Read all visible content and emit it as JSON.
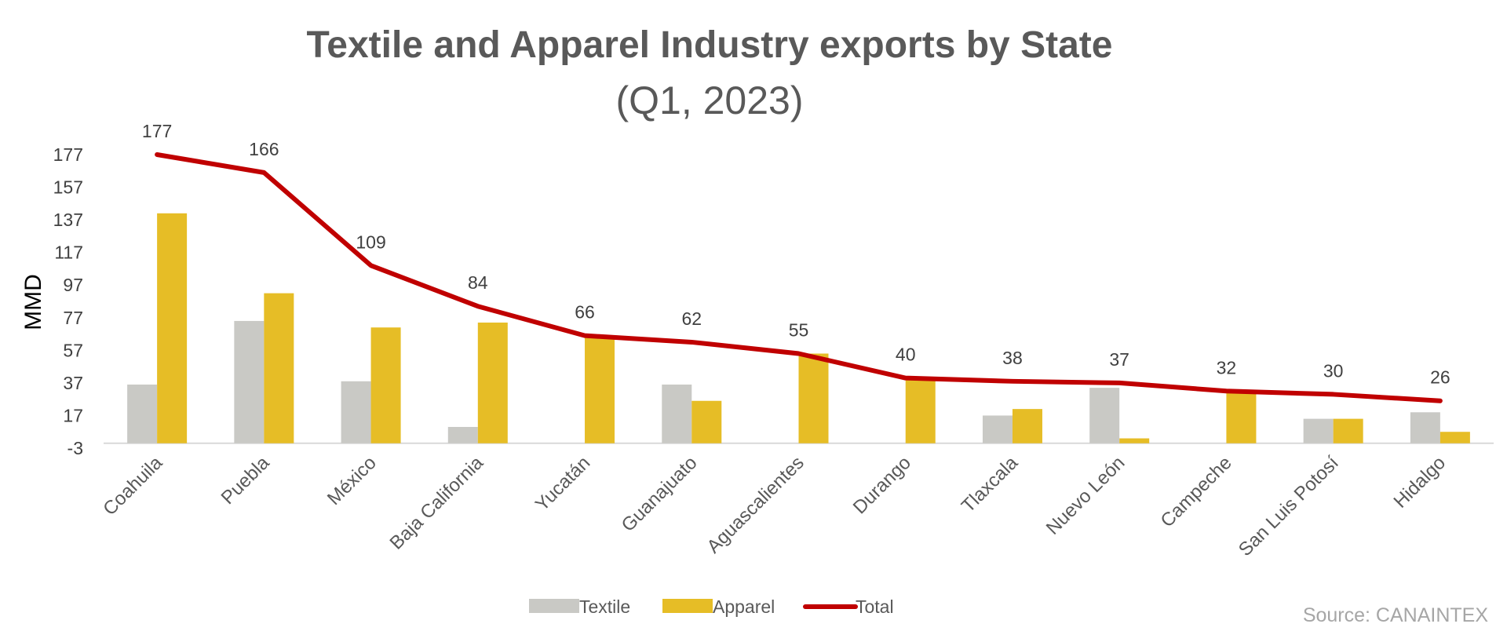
{
  "chart_data": {
    "type": "bar",
    "title": "Textile and Apparel Industry exports by State",
    "subtitle": "(Q1, 2023)",
    "xlabel": "",
    "ylabel": "MMD",
    "ylim": [
      -3,
      177
    ],
    "yticks": [
      "177",
      "157",
      "137",
      "117",
      "97",
      "77",
      "57",
      "37",
      "17",
      "-3"
    ],
    "ytick_values": [
      177,
      157,
      137,
      117,
      97,
      77,
      57,
      37,
      17,
      -3
    ],
    "categories": [
      "Coahuila",
      "Puebla",
      "México",
      "Baja California",
      "Yucatán",
      "Guanajuato",
      "Aguascalientes",
      "Durango",
      "Tlaxcala",
      "Nuevo León",
      "Campeche",
      "San Luis Potosí",
      "Hidalgo"
    ],
    "series": [
      {
        "name": "Textile",
        "type": "bar",
        "color": "#c9c9c5",
        "values": [
          36,
          75,
          38,
          10,
          0,
          36,
          0,
          0,
          17,
          34,
          0,
          15,
          19
        ]
      },
      {
        "name": "Apparel",
        "type": "bar",
        "color": "#e6bd26",
        "values": [
          141,
          92,
          71,
          74,
          66,
          26,
          55,
          40,
          21,
          3,
          32,
          15,
          7
        ]
      },
      {
        "name": "Total",
        "type": "line",
        "color": "#c00000",
        "values": [
          177,
          166,
          109,
          84,
          66,
          62,
          55,
          40,
          38,
          37,
          32,
          30,
          26
        ]
      }
    ],
    "data_labels": [
      "177",
      "166",
      "109",
      "84",
      "66",
      "62",
      "55",
      "40",
      "38",
      "37",
      "32",
      "30",
      "26"
    ],
    "grid": false,
    "legend_position": "bottom"
  },
  "source": "Source: CANAINTEX"
}
